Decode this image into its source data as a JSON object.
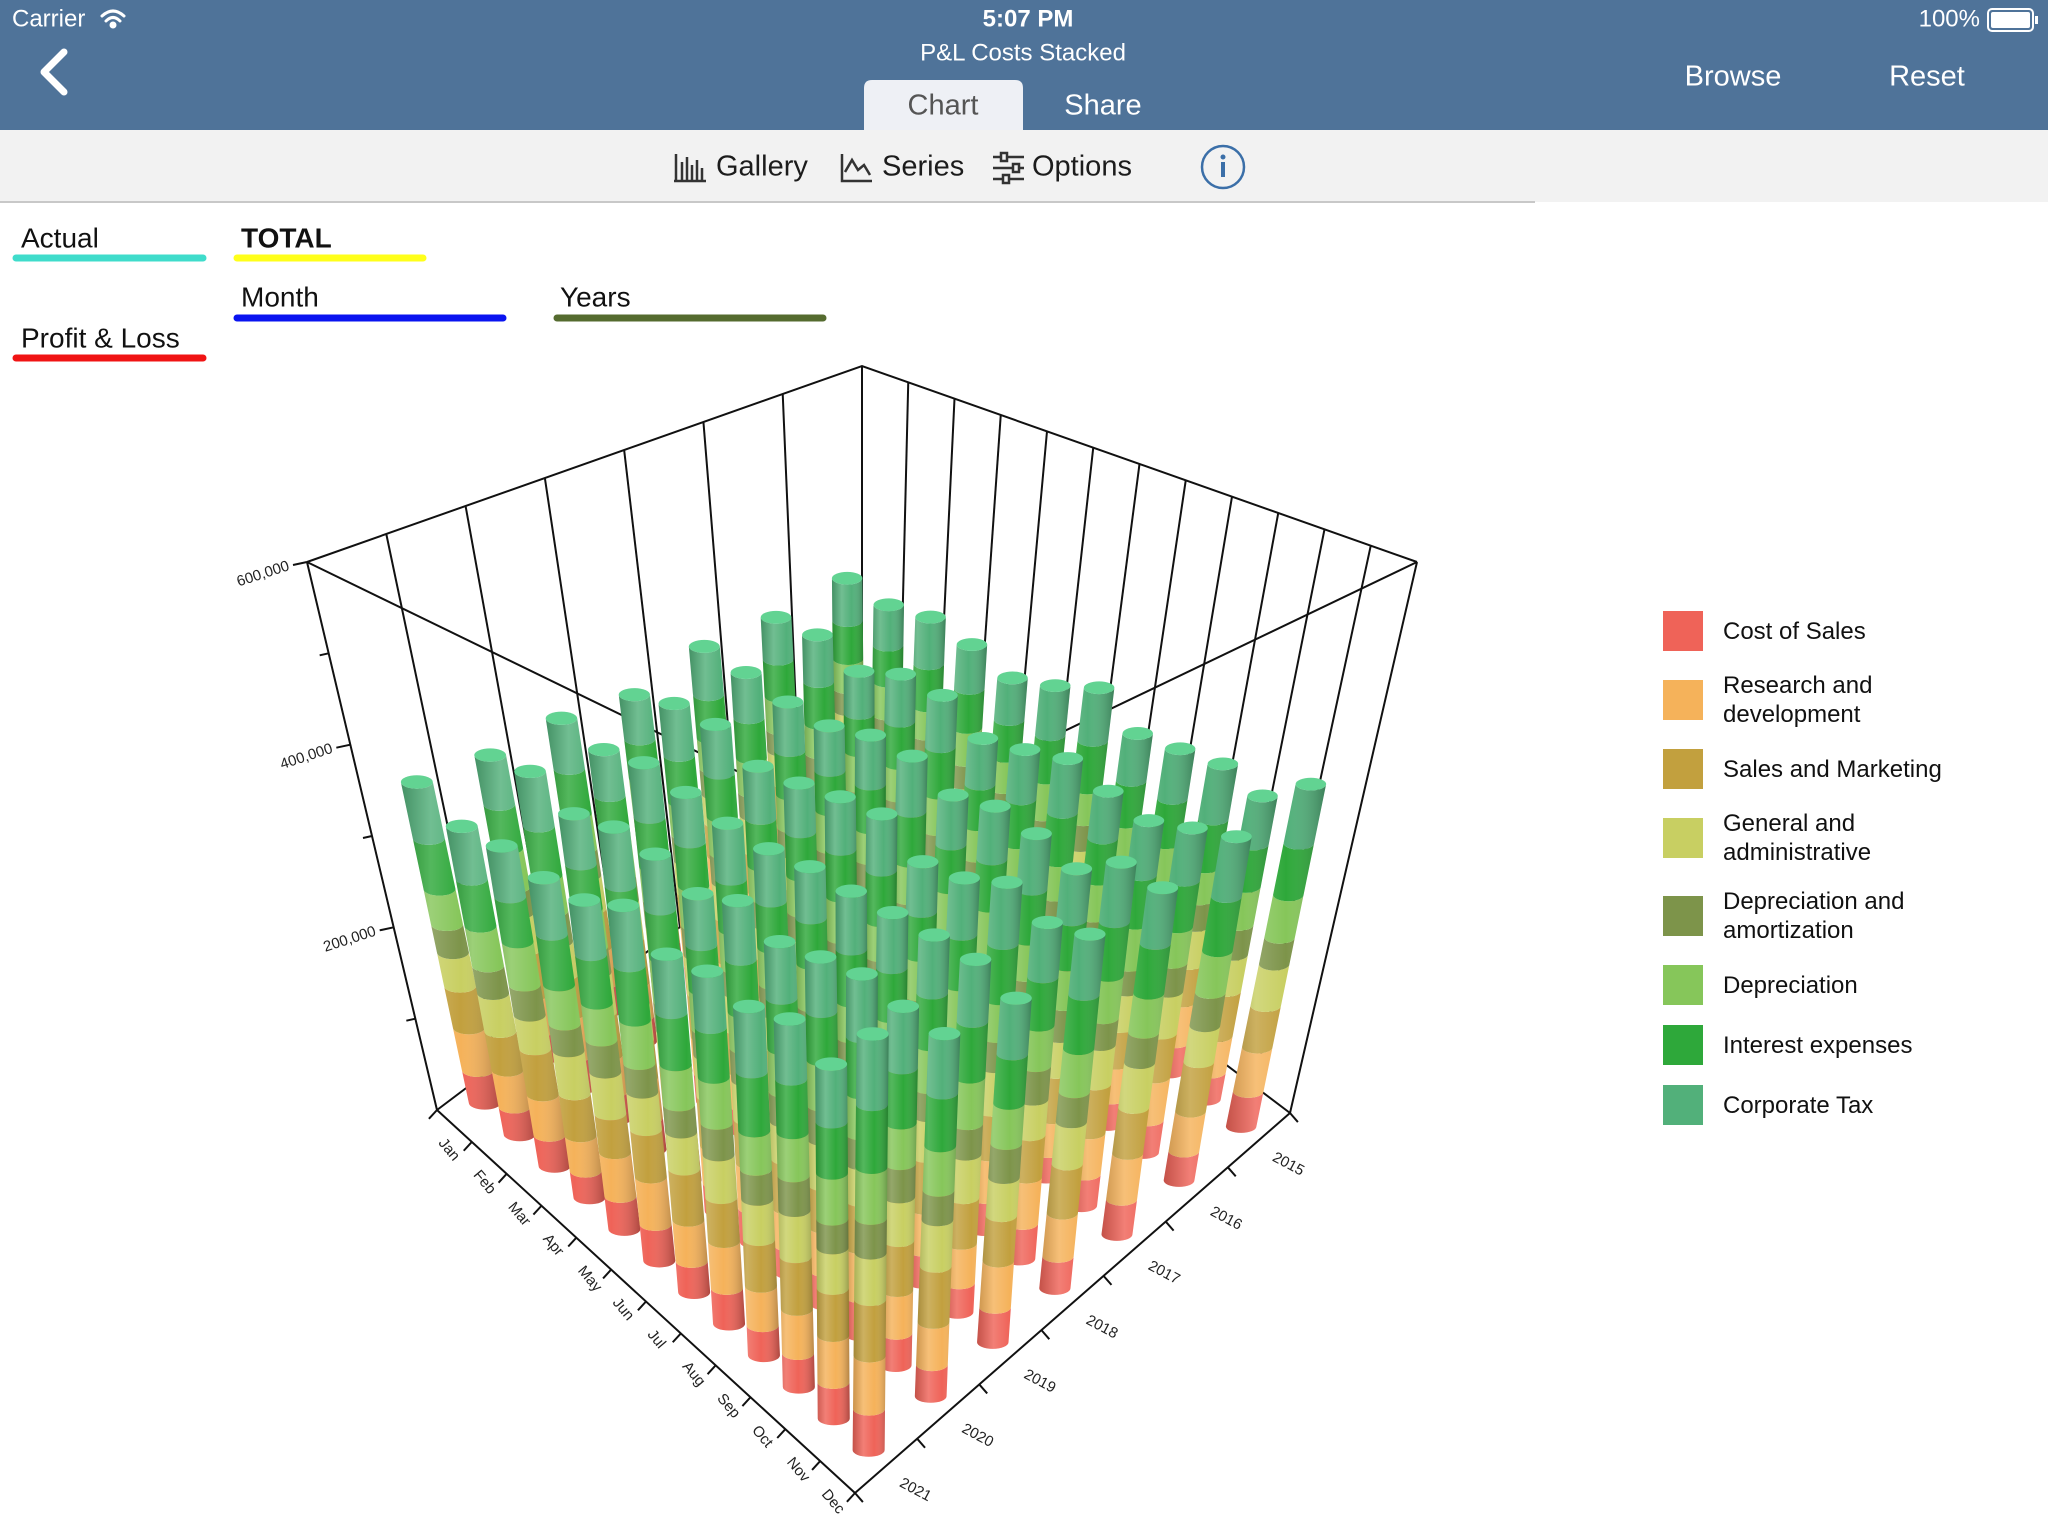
{
  "status_bar": {
    "carrier": "Carrier",
    "time": "5:07 PM",
    "battery": "100%"
  },
  "nav": {
    "title": "P&L Costs Stacked",
    "tabs": [
      "Chart",
      "Share"
    ],
    "buttons": [
      "Browse",
      "Reset"
    ]
  },
  "toolbar": [
    "Gallery",
    "Series",
    "Options"
  ],
  "filters": [
    {
      "label": "Actual",
      "color": "#3fdccb"
    },
    {
      "label": "TOTAL",
      "color": "#ffff1a"
    },
    {
      "label": "Month",
      "color": "#0a14f0"
    },
    {
      "label": "Years",
      "color": "#556b2f"
    },
    {
      "label": "Profit & Loss",
      "color": "#f01414"
    }
  ],
  "chart_data": {
    "type": "bar3d",
    "categories": [
      "Jan",
      "Feb",
      "Mar",
      "Apr",
      "May",
      "Jun",
      "Jul",
      "Aug",
      "Sep",
      "Oct",
      "Nov",
      "Dec"
    ],
    "years": [
      "2015",
      "2016",
      "2017",
      "2018",
      "2019",
      "2020",
      "2021"
    ],
    "ylim": [
      0,
      600000
    ],
    "yticks": [
      {
        "value": 200000,
        "label": "200,000"
      },
      {
        "value": 400000,
        "label": "400,000"
      },
      {
        "value": 600000,
        "label": "600,000"
      }
    ],
    "minor_yticks": [
      100000,
      300000,
      500000
    ],
    "legend": "right",
    "series": [
      {
        "name": "Cost of Sales",
        "color": "#ef6358",
        "values": [
          [
            32000,
            28000,
            35000,
            30000,
            27000,
            33000,
            36000,
            29000,
            31000,
            34000,
            30000,
            38000
          ],
          [
            30000,
            33000,
            29000,
            36000,
            31000,
            28000,
            34000,
            32000,
            37000,
            29000,
            35000,
            31000
          ],
          [
            35000,
            31000,
            28000,
            33000,
            36000,
            30000,
            29000,
            34000,
            31000,
            27000,
            33000,
            36000
          ],
          [
            28000,
            34000,
            32000,
            29000,
            35000,
            31000,
            37000,
            30000,
            28000,
            33000,
            36000,
            32000
          ],
          [
            33000,
            29000,
            36000,
            31000,
            28000,
            35000,
            30000,
            33000,
            36000,
            32000,
            29000,
            34000
          ],
          [
            31000,
            36000,
            30000,
            34000,
            32000,
            29000,
            35000,
            28000,
            33000,
            37000,
            31000,
            30000
          ],
          [
            36000,
            30000,
            33000,
            28000,
            34000,
            37000,
            31000,
            35000,
            29000,
            32000,
            34000,
            38000
          ]
        ]
      },
      {
        "name": "Research and development",
        "color": "#f5b25a",
        "values": [
          [
            42000,
            38000,
            45000,
            40000,
            36000,
            44000,
            47000,
            39000,
            41000,
            46000,
            40000,
            48000
          ],
          [
            40000,
            44000,
            39000,
            46000,
            41000,
            37000,
            45000,
            43000,
            48000,
            38000,
            46000,
            42000
          ],
          [
            45000,
            41000,
            37000,
            43000,
            47000,
            40000,
            39000,
            44000,
            42000,
            36000,
            43000,
            47000
          ],
          [
            38000,
            45000,
            42000,
            39000,
            46000,
            41000,
            48000,
            40000,
            37000,
            44000,
            47000,
            43000
          ],
          [
            43000,
            39000,
            47000,
            41000,
            38000,
            46000,
            40000,
            44000,
            47000,
            42000,
            39000,
            45000
          ],
          [
            41000,
            47000,
            40000,
            44000,
            42000,
            39000,
            46000,
            37000,
            43000,
            48000,
            41000,
            40000
          ],
          [
            47000,
            40000,
            43000,
            37000,
            45000,
            48000,
            41000,
            46000,
            38000,
            42000,
            44000,
            49000
          ]
        ]
      },
      {
        "name": "Sales and Marketing",
        "color": "#c2a03e",
        "values": [
          [
            48000,
            52000,
            44000,
            50000,
            46000,
            41000,
            49000,
            47000,
            53000,
            42000,
            50000,
            45000
          ],
          [
            50000,
            45000,
            41000,
            47000,
            51000,
            44000,
            43000,
            48000,
            46000,
            40000,
            47000,
            52000
          ],
          [
            42000,
            49000,
            46000,
            43000,
            50000,
            45000,
            52000,
            44000,
            41000,
            48000,
            51000,
            47000
          ],
          [
            47000,
            43000,
            51000,
            45000,
            42000,
            50000,
            44000,
            48000,
            51000,
            46000,
            43000,
            49000
          ],
          [
            45000,
            51000,
            44000,
            48000,
            46000,
            43000,
            50000,
            41000,
            47000,
            52000,
            45000,
            44000
          ],
          [
            51000,
            44000,
            47000,
            41000,
            49000,
            52000,
            45000,
            50000,
            42000,
            46000,
            48000,
            53000
          ],
          [
            46000,
            42000,
            49000,
            44000,
            40000,
            48000,
            51000,
            43000,
            45000,
            50000,
            44000,
            52000
          ]
        ]
      },
      {
        "name": "General and administrative",
        "color": "#c8cf62",
        "values": [
          [
            38000,
            42000,
            35000,
            40000,
            44000,
            37000,
            41000,
            39000,
            36000,
            43000,
            40000,
            45000
          ],
          [
            41000,
            36000,
            43000,
            38000,
            35000,
            42000,
            39000,
            44000,
            37000,
            40000,
            45000,
            38000
          ],
          [
            36000,
            43000,
            39000,
            42000,
            37000,
            44000,
            35000,
            40000,
            43000,
            38000,
            41000,
            46000
          ],
          [
            43000,
            38000,
            41000,
            36000,
            42000,
            39000,
            44000,
            37000,
            40000,
            45000,
            36000,
            42000
          ],
          [
            39000,
            44000,
            37000,
            43000,
            40000,
            36000,
            42000,
            45000,
            38000,
            41000,
            43000,
            37000
          ],
          [
            42000,
            37000,
            44000,
            39000,
            36000,
            43000,
            40000,
            38000,
            45000,
            36000,
            42000,
            44000
          ],
          [
            37000,
            41000,
            36000,
            45000,
            43000,
            38000,
            37000,
            42000,
            39000,
            44000,
            38000,
            43000
          ]
        ]
      },
      {
        "name": "Depreciation and amortization",
        "color": "#7d944a",
        "values": [
          [
            30000,
            27000,
            33000,
            29000,
            32000,
            26000,
            31000,
            34000,
            28000,
            30000,
            33000,
            29000
          ],
          [
            28000,
            32000,
            27000,
            31000,
            29000,
            34000,
            26000,
            30000,
            33000,
            27000,
            31000,
            35000
          ],
          [
            33000,
            29000,
            31000,
            26000,
            34000,
            28000,
            32000,
            27000,
            30000,
            34000,
            28000,
            31000
          ],
          [
            27000,
            31000,
            34000,
            30000,
            28000,
            32000,
            29000,
            33000,
            26000,
            31000,
            34000,
            30000
          ],
          [
            32000,
            28000,
            30000,
            33000,
            27000,
            31000,
            34000,
            29000,
            32000,
            28000,
            30000,
            33000
          ],
          [
            29000,
            34000,
            28000,
            32000,
            31000,
            27000,
            33000,
            30000,
            34000,
            29000,
            32000,
            28000
          ],
          [
            31000,
            30000,
            32000,
            28000,
            33000,
            29000,
            27000,
            31000,
            29000,
            33000,
            27000,
            32000
          ]
        ]
      },
      {
        "name": "Depreciation",
        "color": "#86c65a",
        "values": [
          [
            40000,
            44000,
            37000,
            42000,
            39000,
            45000,
            38000,
            41000,
            43000,
            36000,
            42000,
            46000
          ],
          [
            43000,
            38000,
            45000,
            40000,
            44000,
            37000,
            42000,
            39000,
            41000,
            46000,
            38000,
            44000
          ],
          [
            38000,
            42000,
            40000,
            45000,
            36000,
            43000,
            41000,
            46000,
            39000,
            42000,
            44000,
            40000
          ],
          [
            45000,
            39000,
            43000,
            37000,
            41000,
            46000,
            38000,
            42000,
            44000,
            39000,
            41000,
            43000
          ],
          [
            41000,
            46000,
            38000,
            44000,
            42000,
            39000,
            45000,
            37000,
            40000,
            43000,
            46000,
            39000
          ],
          [
            44000,
            40000,
            42000,
            38000,
            46000,
            41000,
            37000,
            43000,
            45000,
            40000,
            39000,
            42000
          ],
          [
            39000,
            43000,
            46000,
            41000,
            38000,
            44000,
            40000,
            45000,
            37000,
            41000,
            43000,
            47000
          ]
        ]
      },
      {
        "name": "Interest expenses",
        "color": "#2ea83a",
        "values": [
          [
            52000,
            48000,
            55000,
            50000,
            46000,
            53000,
            57000,
            49000,
            51000,
            54000,
            47000,
            56000
          ],
          [
            49000,
            54000,
            47000,
            52000,
            56000,
            48000,
            51000,
            55000,
            46000,
            53000,
            50000,
            57000
          ],
          [
            55000,
            50000,
            53000,
            47000,
            51000,
            57000,
            49000,
            52000,
            54000,
            48000,
            56000,
            51000
          ],
          [
            48000,
            56000,
            51000,
            54000,
            49000,
            52000,
            55000,
            47000,
            53000,
            57000,
            49000,
            54000
          ],
          [
            53000,
            47000,
            56000,
            49000,
            55000,
            50000,
            48000,
            54000,
            50000,
            52000,
            55000,
            48000
          ],
          [
            50000,
            55000,
            49000,
            57000,
            52000,
            47000,
            54000,
            51000,
            48000,
            55000,
            53000,
            50000
          ],
          [
            56000,
            51000,
            48000,
            53000,
            50000,
            55000,
            52000,
            49000,
            57000,
            51000,
            48000,
            58000
          ]
        ]
      },
      {
        "name": "Corporate Tax",
        "color": "#52b07a",
        "values": [
          [
            58000,
            54000,
            61000,
            56000,
            52000,
            60000,
            63000,
            55000,
            57000,
            62000,
            53000,
            64000
          ],
          [
            55000,
            60000,
            53000,
            58000,
            62000,
            54000,
            57000,
            61000,
            52000,
            59000,
            56000,
            63000
          ],
          [
            61000,
            56000,
            59000,
            53000,
            57000,
            63000,
            55000,
            58000,
            60000,
            54000,
            62000,
            57000
          ],
          [
            54000,
            62000,
            57000,
            60000,
            55000,
            58000,
            61000,
            53000,
            59000,
            63000,
            55000,
            60000
          ],
          [
            59000,
            53000,
            62000,
            55000,
            61000,
            56000,
            54000,
            60000,
            56000,
            58000,
            61000,
            54000
          ],
          [
            56000,
            61000,
            55000,
            63000,
            58000,
            53000,
            60000,
            57000,
            54000,
            61000,
            59000,
            56000
          ],
          [
            62000,
            57000,
            54000,
            59000,
            56000,
            61000,
            58000,
            55000,
            63000,
            57000,
            54000,
            65000
          ]
        ]
      }
    ]
  }
}
